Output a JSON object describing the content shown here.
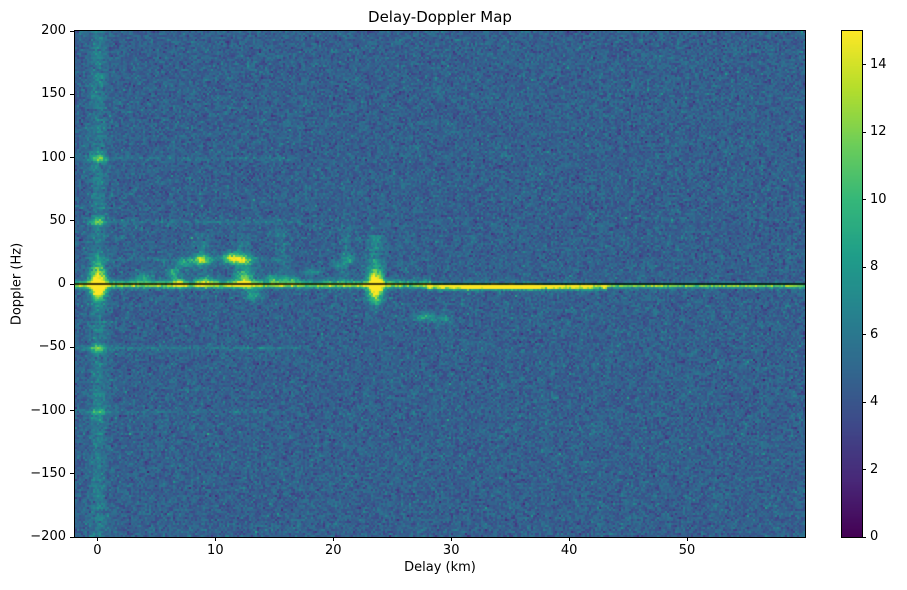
{
  "chart_data": {
    "type": "heatmap",
    "title": "Delay-Doppler Map",
    "xlabel": "Delay (km)",
    "ylabel": "Doppler (Hz)",
    "x_range": [
      -1.9,
      60.0
    ],
    "y_range": [
      -200,
      200
    ],
    "x_ticks": [
      0,
      10,
      20,
      30,
      40,
      50
    ],
    "y_ticks": [
      -200,
      -150,
      -100,
      -50,
      0,
      50,
      100,
      150,
      200
    ],
    "grid": false,
    "colormap": "viridis",
    "colormap_stops": [
      "#440154",
      "#482878",
      "#3e4989",
      "#31688e",
      "#26828e",
      "#1f9e89",
      "#35b779",
      "#6ece58",
      "#b5de2b",
      "#fde725"
    ],
    "colorbar": {
      "min": 0,
      "max": 15,
      "ticks": [
        0,
        2,
        4,
        6,
        8,
        10,
        12,
        14
      ],
      "position": "right"
    },
    "background_noise": {
      "mean": 4.6,
      "std": 0.85,
      "speckle_prob": 0.006,
      "speckle_amp": 3,
      "seed": 1234
    },
    "zero_doppler_line": {
      "y": 0,
      "color": "#000000",
      "width": 1.5
    },
    "features": [
      {
        "kind": "hband",
        "y": 0.5,
        "x0": -1.9,
        "x1": 28,
        "amp": 5.5,
        "sy": 2.2
      },
      {
        "kind": "hband",
        "y": 0,
        "x0": -1.9,
        "x1": 60,
        "amp": 3.5,
        "sy": 1.2
      },
      {
        "kind": "hband",
        "y": -1.5,
        "x0": 28,
        "x1": 43,
        "amp": 8,
        "sy": 1.6
      },
      {
        "kind": "hband",
        "y": -1,
        "x0": 31,
        "x1": 37,
        "amp": 4,
        "sy": 1.2
      },
      {
        "kind": "hband",
        "y": -1,
        "x0": 43,
        "x1": 60,
        "amp": 4.5,
        "sy": 1.1
      },
      {
        "kind": "blob",
        "x": 0,
        "y": 2,
        "sx": 0.45,
        "sy": 9,
        "amp": 10
      },
      {
        "kind": "blob",
        "x": 0,
        "y": -4,
        "sx": 0.4,
        "sy": 4,
        "amp": 6
      },
      {
        "kind": "vband",
        "x": 0,
        "y0": -200,
        "y1": 200,
        "amp": 1.6,
        "sx": 0.5
      },
      {
        "kind": "blob",
        "x": 0,
        "y": 100,
        "sx": 0.4,
        "sy": 2.5,
        "amp": 5
      },
      {
        "kind": "blob",
        "x": 0,
        "y": 50,
        "sx": 0.4,
        "sy": 2.5,
        "amp": 4.5
      },
      {
        "kind": "blob",
        "x": 0,
        "y": -50,
        "sx": 0.4,
        "sy": 2.5,
        "amp": 4
      },
      {
        "kind": "blob",
        "x": 0,
        "y": -100,
        "sx": 0.4,
        "sy": 2.5,
        "amp": 3.5
      },
      {
        "kind": "hband",
        "y": 50,
        "x0": -1.9,
        "x1": 17,
        "amp": 1.1,
        "sy": 1.2
      },
      {
        "kind": "hband",
        "y": -50,
        "x0": -1.9,
        "x1": 17,
        "amp": 1.4,
        "sy": 1.2
      },
      {
        "kind": "hband",
        "y": 100,
        "x0": -1.9,
        "x1": 17,
        "amp": 0.9,
        "sy": 1.2
      },
      {
        "kind": "hband",
        "y": -100,
        "x0": -1.9,
        "x1": 17,
        "amp": 0.8,
        "sy": 1.2
      },
      {
        "kind": "hband",
        "y": 20,
        "x0": 0,
        "x1": 15,
        "amp": 0.9,
        "sy": 1.5
      },
      {
        "kind": "blob",
        "x": 3.8,
        "y": 6,
        "sx": 0.5,
        "sy": 3,
        "amp": 3.5
      },
      {
        "kind": "blob",
        "x": 6.4,
        "y": 10,
        "sx": 0.4,
        "sy": 3,
        "amp": 4.5
      },
      {
        "kind": "blob",
        "x": 6.8,
        "y": 2,
        "sx": 0.4,
        "sy": 2.5,
        "amp": 5
      },
      {
        "kind": "blob",
        "x": 7.2,
        "y": 17,
        "sx": 0.4,
        "sy": 2.5,
        "amp": 4
      },
      {
        "kind": "blob",
        "x": 8.7,
        "y": 20,
        "sx": 0.6,
        "sy": 2.8,
        "amp": 7
      },
      {
        "kind": "blob",
        "x": 9.2,
        "y": 3,
        "sx": 0.5,
        "sy": 2.5,
        "amp": 4.5
      },
      {
        "kind": "blob",
        "x": 11.2,
        "y": 22,
        "sx": 0.5,
        "sy": 2.8,
        "amp": 6
      },
      {
        "kind": "blob",
        "x": 12.1,
        "y": 20,
        "sx": 0.7,
        "sy": 3,
        "amp": 7.5
      },
      {
        "kind": "blob",
        "x": 12.4,
        "y": 8,
        "sx": 0.5,
        "sy": 3,
        "amp": 5.5
      },
      {
        "kind": "blob",
        "x": 12.3,
        "y": 1,
        "sx": 0.6,
        "sy": 2.5,
        "amp": 6.5
      },
      {
        "kind": "blob",
        "x": 13.1,
        "y": -8,
        "sx": 0.5,
        "sy": 2.5,
        "amp": 4
      },
      {
        "kind": "blob",
        "x": 14.6,
        "y": 5,
        "sx": 0.5,
        "sy": 2.5,
        "amp": 3
      },
      {
        "kind": "blob",
        "x": 16.2,
        "y": 4,
        "sx": 0.5,
        "sy": 2.5,
        "amp": 3
      },
      {
        "kind": "blob",
        "x": 18.2,
        "y": 10,
        "sx": 0.5,
        "sy": 2.5,
        "amp": 2.5
      },
      {
        "kind": "blob",
        "x": 20.3,
        "y": 16,
        "sx": 0.4,
        "sy": 2.5,
        "amp": 2.8
      },
      {
        "kind": "blob",
        "x": 21.2,
        "y": 21,
        "sx": 0.4,
        "sy": 2.5,
        "amp": 3
      },
      {
        "kind": "vband",
        "x": 8.8,
        "y0": 0,
        "y1": 40,
        "amp": 1.2,
        "sx": 0.5
      },
      {
        "kind": "vband",
        "x": 12.2,
        "y0": 0,
        "y1": 40,
        "amp": 1.2,
        "sx": 0.5
      },
      {
        "kind": "vband",
        "x": 15.6,
        "y0": 0,
        "y1": 45,
        "amp": 1.0,
        "sx": 0.4
      },
      {
        "kind": "vband",
        "x": 21.0,
        "y0": 0,
        "y1": 45,
        "amp": 1.0,
        "sx": 0.4
      },
      {
        "kind": "blob",
        "x": 23.5,
        "y": 0,
        "sx": 0.45,
        "sy": 8,
        "amp": 11
      },
      {
        "kind": "vband",
        "x": 23.5,
        "y0": -15,
        "y1": 38,
        "amp": 2.2,
        "sx": 0.5
      },
      {
        "kind": "blob",
        "x": 27.6,
        "y": -25,
        "sx": 0.6,
        "sy": 2.5,
        "amp": 3.5
      },
      {
        "kind": "blob",
        "x": 29.2,
        "y": -27,
        "sx": 0.5,
        "sy": 2.2,
        "amp": 3
      },
      {
        "kind": "blob",
        "x": 33,
        "y": -1.5,
        "sx": 2.5,
        "sy": 1.3,
        "amp": 4
      },
      {
        "kind": "blob",
        "x": 36,
        "y": -1.5,
        "sx": 2.0,
        "sy": 1.2,
        "amp": 3
      }
    ]
  }
}
